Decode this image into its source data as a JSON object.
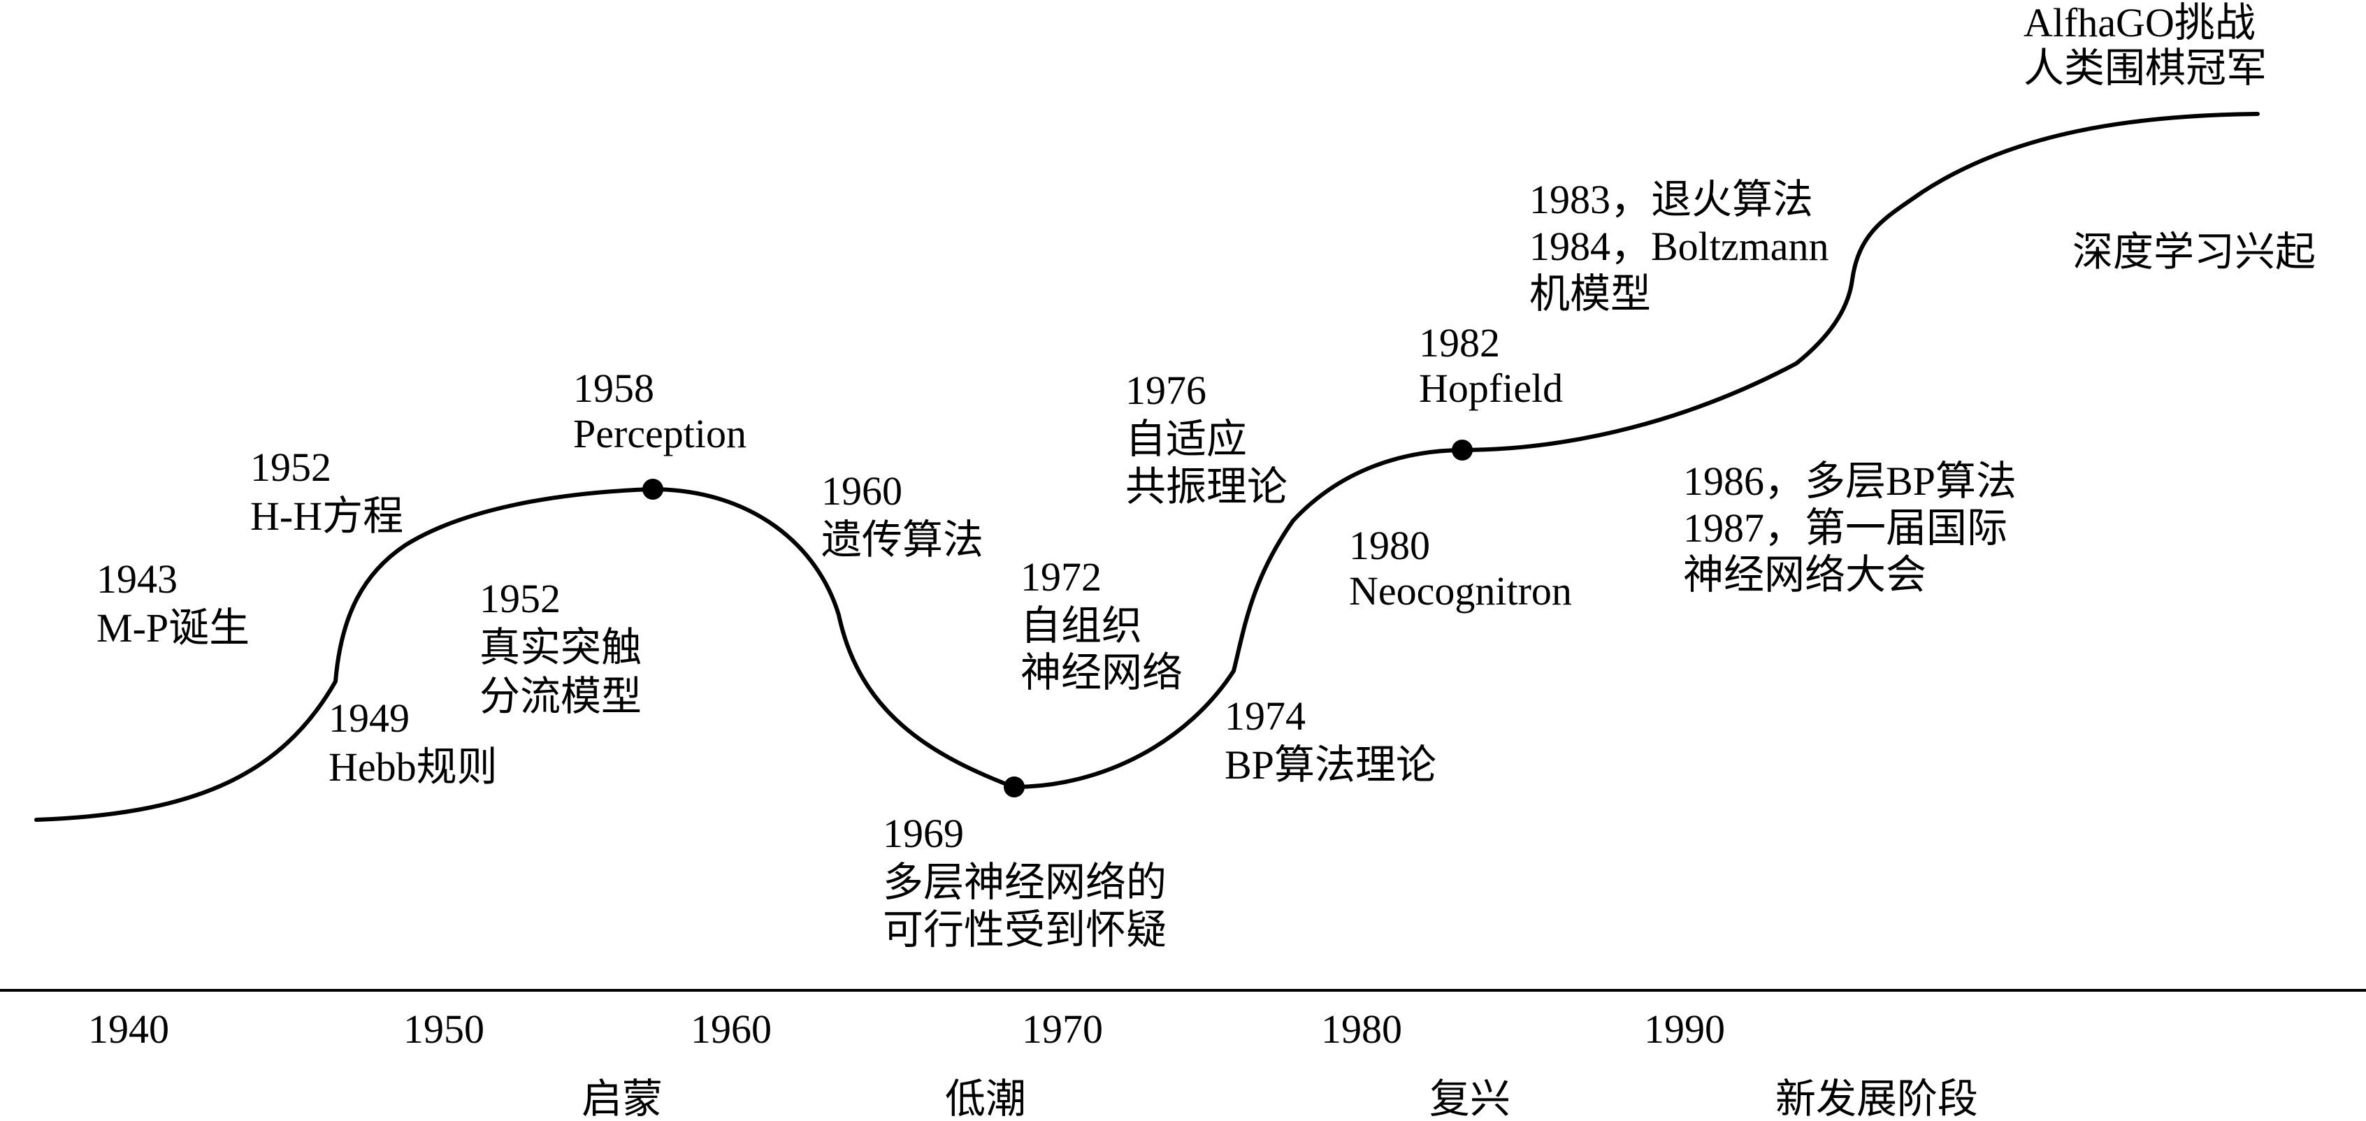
{
  "events": [
    {
      "id": "1943",
      "lines": [
        "1943",
        "M-P诞生"
      ]
    },
    {
      "id": "1949",
      "lines": [
        "1949",
        "Hebb规则"
      ]
    },
    {
      "id": "1952a",
      "lines": [
        "1952",
        "H-H方程"
      ]
    },
    {
      "id": "1952b",
      "lines": [
        "1952",
        "真实突触",
        "分流模型"
      ]
    },
    {
      "id": "1958",
      "lines": [
        "1958",
        "Perception"
      ]
    },
    {
      "id": "1960",
      "lines": [
        "1960",
        "遗传算法"
      ]
    },
    {
      "id": "1969",
      "lines": [
        "1969",
        "多层神经网络的",
        "可行性受到怀疑"
      ]
    },
    {
      "id": "1972",
      "lines": [
        "1972",
        "自组织",
        "神经网络"
      ]
    },
    {
      "id": "1974",
      "lines": [
        "1974",
        "BP算法理论"
      ]
    },
    {
      "id": "1976",
      "lines": [
        "1976",
        "自适应",
        "共振理论"
      ]
    },
    {
      "id": "1980",
      "lines": [
        "1980",
        "Neocognitron"
      ]
    },
    {
      "id": "1982",
      "lines": [
        "1982",
        "Hopfield"
      ]
    },
    {
      "id": "1983",
      "lines": [
        "1983，退火算法",
        "1984，Boltzmann",
        "机模型"
      ]
    },
    {
      "id": "1986",
      "lines": [
        "1986，多层BP算法",
        "1987，第一届国际",
        "神经网络大会"
      ]
    },
    {
      "id": "deep",
      "lines": [
        "深度学习兴起"
      ]
    },
    {
      "id": "alphago",
      "lines": [
        "AlfhaGO挑战",
        "人类围棋冠军"
      ]
    }
  ],
  "axis": {
    "years": [
      "1940",
      "1950",
      "1960",
      "1970",
      "1980",
      "1990"
    ],
    "stages": [
      "启蒙",
      "低潮",
      "复兴",
      "新发展阶段"
    ]
  }
}
